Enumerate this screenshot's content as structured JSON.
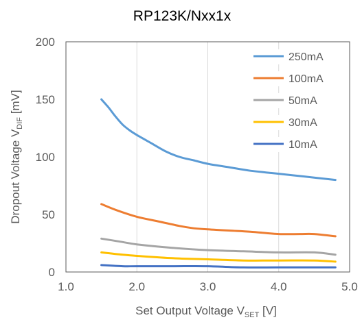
{
  "chart_data": {
    "type": "line",
    "title": "RP123K/Nxx1x",
    "xlabel": {
      "main": "Set Output Voltage V",
      "sub": "SET",
      "unit": " [V]"
    },
    "ylabel": {
      "main": "Dropout Voltage V",
      "sub": "DIF",
      "unit": " [mV]"
    },
    "xlim": [
      1.0,
      5.0
    ],
    "ylim": [
      0,
      200
    ],
    "xticks": [
      "1.0",
      "2.0",
      "3.0",
      "4.0",
      "5.0"
    ],
    "yticks": [
      "0",
      "50",
      "100",
      "150",
      "200"
    ],
    "grid": "vertical",
    "legend": "top-right",
    "series": [
      {
        "name": "250mA",
        "color": "#5B9BD5",
        "x": [
          1.5,
          1.6,
          1.7,
          1.8,
          1.9,
          2.0,
          2.2,
          2.4,
          2.6,
          2.8,
          3.0,
          3.3,
          3.6,
          3.9,
          4.2,
          4.5,
          4.8
        ],
        "y": [
          150,
          143,
          135,
          128,
          123,
          119,
          112,
          105,
          100,
          97,
          94,
          91,
          88,
          86,
          84,
          82,
          80
        ]
      },
      {
        "name": "100mA",
        "color": "#ED7D31",
        "x": [
          1.5,
          1.7,
          2.0,
          2.3,
          2.6,
          2.8,
          3.0,
          3.3,
          3.6,
          4.0,
          4.3,
          4.5,
          4.8
        ],
        "y": [
          59,
          54,
          48,
          44,
          40,
          38,
          37,
          36,
          35,
          33,
          33,
          33,
          31
        ]
      },
      {
        "name": "50mA",
        "color": "#A5A5A5",
        "x": [
          1.5,
          1.8,
          2.0,
          2.5,
          3.0,
          3.5,
          4.0,
          4.5,
          4.8
        ],
        "y": [
          29,
          26,
          24,
          21,
          19,
          18,
          17,
          17,
          15
        ]
      },
      {
        "name": "30mA",
        "color": "#FFC000",
        "x": [
          1.5,
          1.8,
          2.0,
          2.5,
          3.0,
          3.5,
          4.0,
          4.5,
          4.8
        ],
        "y": [
          17,
          15,
          14,
          12,
          11,
          10,
          10,
          10,
          9
        ]
      },
      {
        "name": "10mA",
        "color": "#4472C4",
        "x": [
          1.5,
          1.8,
          2.0,
          2.5,
          3.0,
          3.5,
          4.0,
          4.5,
          4.8
        ],
        "y": [
          6,
          5,
          5,
          5,
          5,
          4,
          4,
          4,
          4
        ]
      }
    ]
  }
}
